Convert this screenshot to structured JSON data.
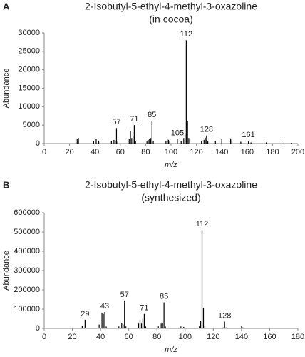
{
  "chart_data": [
    {
      "type": "bar",
      "panel": "A",
      "title": "2-Isobutyl-5-ethyl-4-methyl-3-oxazoline",
      "subtitle": "(in cocoa)",
      "x_label": "m/z",
      "y_label": "Abundance",
      "color": "#000000",
      "xlim": [
        0,
        200
      ],
      "xticks": [
        0,
        20,
        40,
        60,
        80,
        100,
        120,
        140,
        160,
        180,
        200
      ],
      "ylim": [
        0,
        30000
      ],
      "yticks": [
        0,
        5000,
        10000,
        15000,
        20000,
        25000,
        30000
      ],
      "x": [
        26,
        27,
        39,
        41,
        43,
        53,
        55,
        56,
        57,
        58,
        67,
        68,
        69,
        70,
        71,
        72,
        81,
        82,
        83,
        84,
        85,
        86,
        96,
        97,
        98,
        99,
        105,
        108,
        110,
        111,
        112,
        113,
        114,
        124,
        126,
        127,
        128,
        129,
        135,
        140,
        147,
        148,
        155,
        161,
        163,
        175,
        189,
        195
      ],
      "values": [
        1300,
        1500,
        700,
        1200,
        800,
        600,
        1000,
        600,
        4200,
        500,
        1200,
        3500,
        1500,
        2000,
        5000,
        600,
        800,
        1000,
        1200,
        1500,
        6200,
        600,
        600,
        1200,
        1000,
        800,
        1200,
        700,
        1500,
        2500,
        28000,
        6000,
        1500,
        800,
        1000,
        1600,
        2200,
        800,
        700,
        1200,
        1400,
        800,
        500,
        800,
        300,
        300,
        300,
        200
      ],
      "peak_labels": [
        57,
        71,
        85,
        105,
        112,
        128,
        161
      ]
    },
    {
      "type": "bar",
      "panel": "B",
      "title": "2-Isobutyl-5-ethyl-4-methyl-3-oxazoline",
      "subtitle": "(synthesized)",
      "x_label": "m/z",
      "y_label": "Abundance",
      "color": "#000000",
      "xlim": [
        0,
        180
      ],
      "xticks": [
        0,
        20,
        40,
        60,
        80,
        100,
        120,
        140,
        160,
        180
      ],
      "ylim": [
        0,
        600000
      ],
      "yticks": [
        0,
        100000,
        200000,
        300000,
        400000,
        500000,
        600000
      ],
      "x": [
        27,
        29,
        39,
        41,
        42,
        43,
        44,
        53,
        55,
        56,
        57,
        58,
        67,
        68,
        69,
        70,
        71,
        72,
        81,
        83,
        84,
        85,
        86,
        97,
        99,
        110,
        111,
        112,
        113,
        114,
        127,
        128,
        129,
        140,
        141
      ],
      "values": [
        15000,
        45000,
        20000,
        80000,
        75000,
        85000,
        10000,
        10000,
        30000,
        20000,
        145000,
        10000,
        25000,
        45000,
        25000,
        50000,
        75000,
        10000,
        10000,
        25000,
        30000,
        135000,
        10000,
        10000,
        8000,
        10000,
        40000,
        510000,
        105000,
        15000,
        5000,
        35000,
        5000,
        15000,
        5000
      ],
      "peak_labels": [
        29,
        43,
        57,
        71,
        85,
        112,
        128
      ]
    }
  ]
}
